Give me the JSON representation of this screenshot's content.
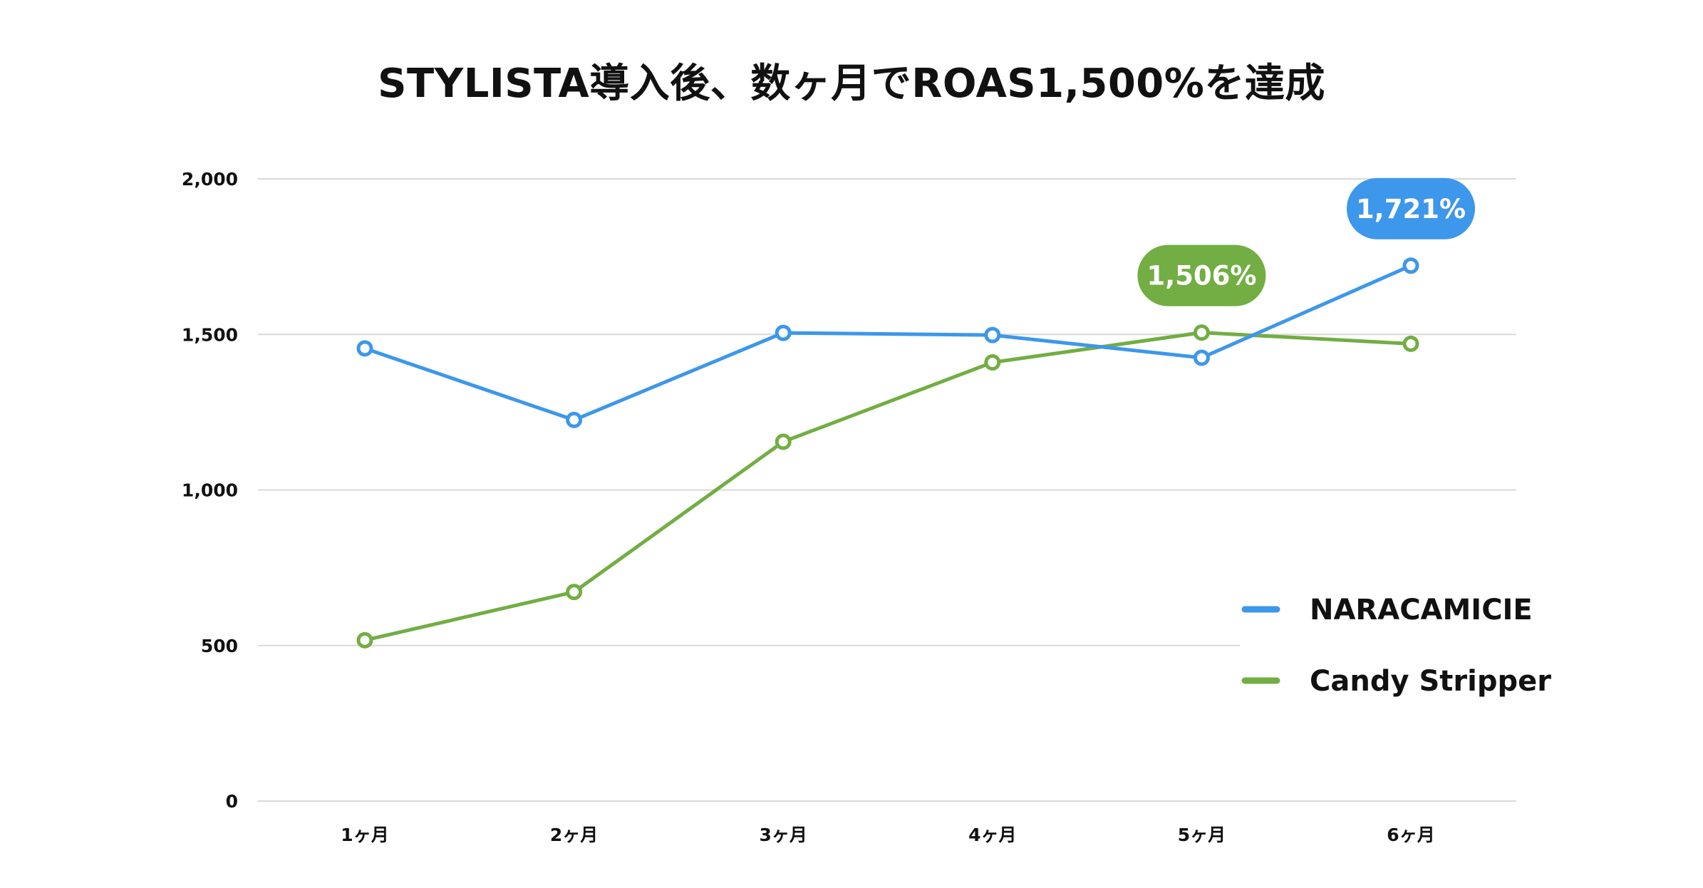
{
  "chart_data": {
    "type": "line",
    "title": "STYLISTA導入後、数ヶ月でROAS1,500%を達成",
    "xlabel": "",
    "ylabel": "",
    "categories": [
      "1ヶ月",
      "2ヶ月",
      "3ヶ月",
      "4ヶ月",
      "5ヶ月",
      "6ヶ月"
    ],
    "ylim": [
      0,
      2000
    ],
    "yticks": [
      0,
      500,
      1000,
      1500,
      2000
    ],
    "ytick_labels": [
      "0",
      "500",
      "1,000",
      "1,500",
      "2,000"
    ],
    "grid": true,
    "legend_position": "right",
    "series": [
      {
        "name": "NARACAMICIE",
        "color": "#3d97ea",
        "values": [
          1455,
          1225,
          1505,
          1498,
          1425,
          1721
        ]
      },
      {
        "name": "Candy Stripper",
        "color": "#72ae43",
        "values": [
          517,
          672,
          1155,
          1410,
          1506,
          1470
        ]
      }
    ],
    "annotations": [
      {
        "series": 0,
        "index": 5,
        "text": "1,721%",
        "color": "#3d97ea"
      },
      {
        "series": 1,
        "index": 4,
        "text": "1,506%",
        "color": "#72ae43"
      }
    ]
  }
}
